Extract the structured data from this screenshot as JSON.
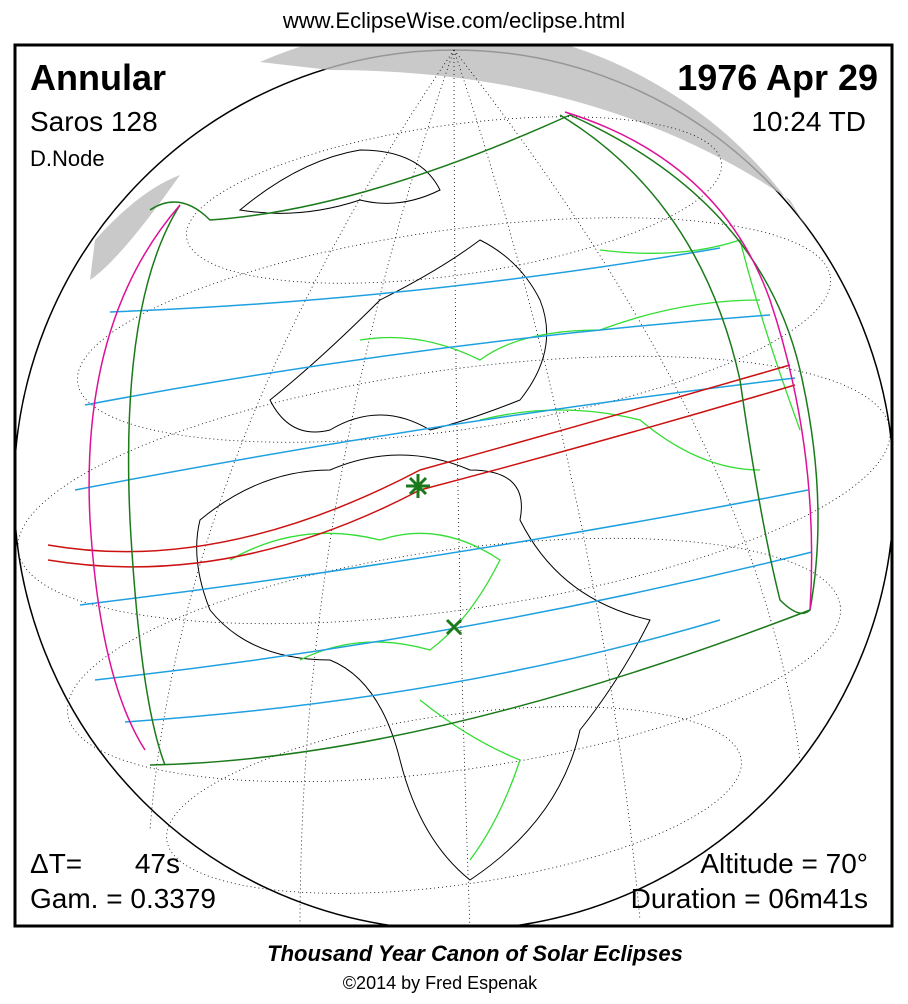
{
  "header": {
    "url": "www.EclipseWise.com/eclipse.html"
  },
  "eclipse": {
    "type": "Annular",
    "saros": "Saros 128",
    "node": "D.Node",
    "date": "1976 Apr 29",
    "time": "10:24 TD",
    "delta_t_label": "ΔT=",
    "delta_t_value": "47s",
    "gamma": "Gam. = 0.3379",
    "altitude": "Altitude = 70°",
    "duration": "Duration = 06m41s"
  },
  "footer": {
    "title": "Thousand Year Canon of Solar Eclipses",
    "copyright": "©2014 by Fred Espenak"
  }
}
